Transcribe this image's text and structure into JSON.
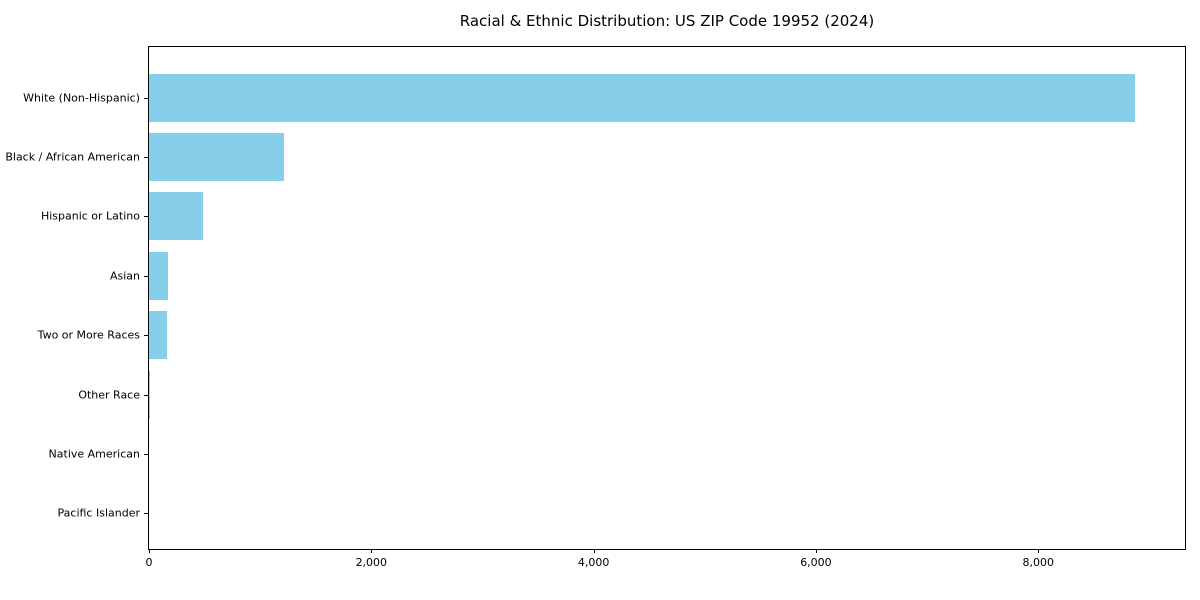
{
  "figure": {
    "background": "#ffffff",
    "title": "Racial & Ethnic Distribution: US ZIP Code 19952 (2024)"
  },
  "chart_data": {
    "type": "bar",
    "orientation": "horizontal",
    "title": "Racial & Ethnic Distribution: US ZIP Code 19952 (2024)",
    "xlabel": "",
    "ylabel": "",
    "grid": false,
    "legend": null,
    "bar_color": "#87CEEB",
    "axis_color": "#000000",
    "xlim": [
      0,
      9320
    ],
    "categories": [
      "White (Non-Hispanic)",
      "Black / African American",
      "Hispanic or Latino",
      "Asian",
      "Two or More Races",
      "Other Race",
      "Native American",
      "Pacific Islander"
    ],
    "values": [
      8870,
      1210,
      490,
      170,
      165,
      10,
      0,
      0
    ],
    "x_ticks": [
      {
        "value": 0,
        "label": "0"
      },
      {
        "value": 2000,
        "label": "2,000"
      },
      {
        "value": 4000,
        "label": "4,000"
      },
      {
        "value": 6000,
        "label": "6,000"
      },
      {
        "value": 8000,
        "label": "8,000"
      }
    ]
  }
}
